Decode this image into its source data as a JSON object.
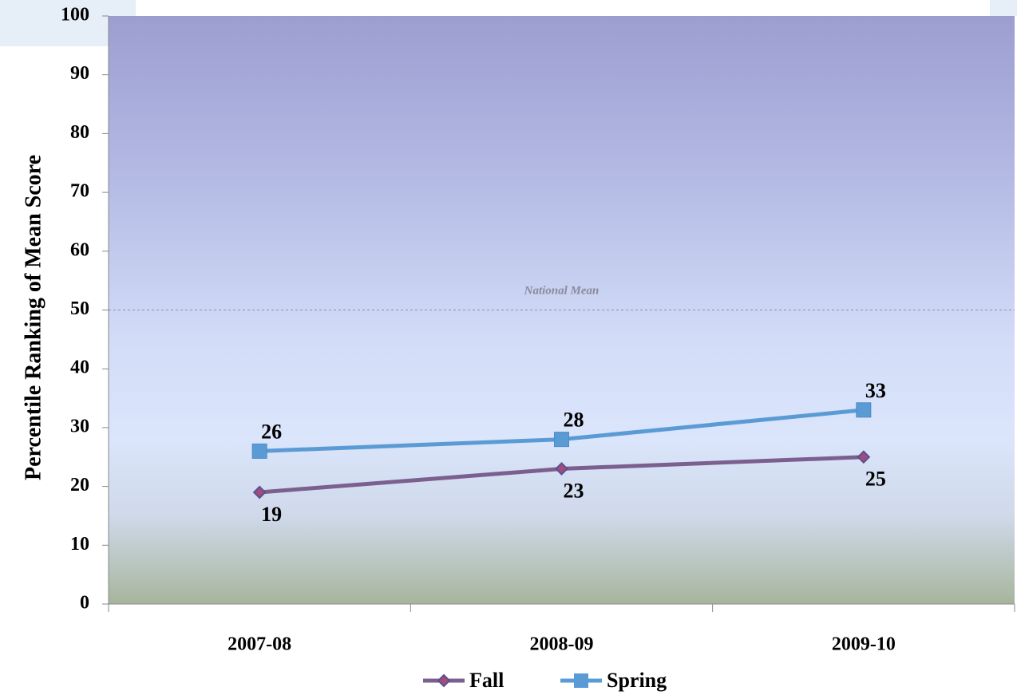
{
  "chart_data": {
    "type": "line",
    "categories": [
      "2007-08",
      "2008-09",
      "2009-10"
    ],
    "series": [
      {
        "name": "Fall",
        "values": [
          19,
          23,
          25
        ],
        "color": "#7b5f8f",
        "marker": "diamond"
      },
      {
        "name": "Spring",
        "values": [
          26,
          28,
          33
        ],
        "color": "#5b9bd5",
        "marker": "square"
      }
    ],
    "title": "",
    "xlabel": "",
    "ylabel": "Percentile Ranking of  Mean Score",
    "ylim": [
      0,
      100
    ],
    "yticks": [
      0,
      10,
      20,
      30,
      40,
      50,
      60,
      70,
      80,
      90,
      100
    ],
    "reference_line": {
      "value": 50,
      "label": "National Mean",
      "style": "dashed"
    },
    "legend": "bottom-center",
    "grid": false
  }
}
